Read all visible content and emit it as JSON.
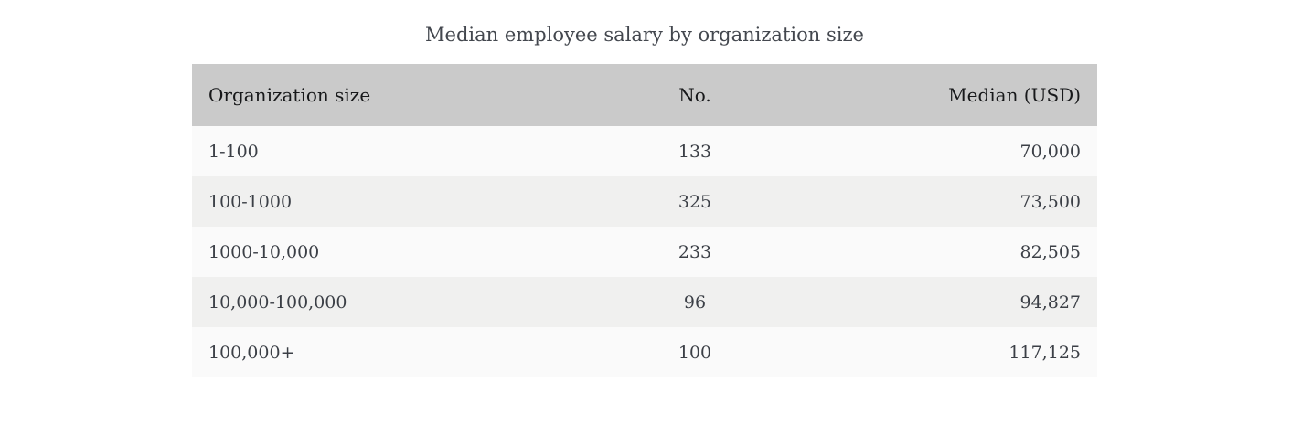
{
  "page": {
    "title": "Median employee salary by organization size"
  },
  "chart_data": {
    "type": "table",
    "title": "Median employee salary by organization size",
    "columns": [
      "Organization size",
      "No.",
      "Median (USD)"
    ],
    "rows": [
      [
        "1-100",
        "133",
        "70,000"
      ],
      [
        "100-1000",
        "325",
        "73,500"
      ],
      [
        "1000-10,000",
        "233",
        "82,505"
      ],
      [
        "10,000-100,000",
        "96",
        "94,827"
      ],
      [
        "100,000+",
        "100",
        "117,125"
      ]
    ],
    "numeric": {
      "organization_sizes": [
        "1-100",
        "100-1000",
        "1000-10,000",
        "10,000-100,000",
        "100,000+"
      ],
      "counts": [
        133,
        325,
        233,
        96,
        100
      ],
      "medians_usd": [
        70000,
        73500,
        82505,
        94827,
        117125
      ]
    },
    "layout_hints": {
      "column_alignments": [
        "left",
        "center",
        "right"
      ],
      "zebra_striping": true,
      "gridlines": false
    }
  },
  "colors": {
    "page_bg": "#ffffff",
    "header_bg": "#cacaca",
    "row_odd_bg": "#fafafa",
    "row_even_bg": "#f0f0ef",
    "header_text": "#17181a",
    "body_text": "#3b3f46",
    "title_text": "#43474e"
  }
}
